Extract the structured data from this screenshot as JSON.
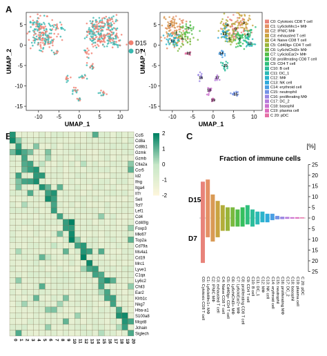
{
  "panels": {
    "a": {
      "letter": "A"
    },
    "b": {
      "letter": "B"
    },
    "c": {
      "letter": "C"
    }
  },
  "umap": {
    "x_label": "UMAP_1",
    "y_label": "UMAP_2",
    "x_ticks": [
      "-10",
      "-5",
      "0",
      "5",
      "10"
    ],
    "y_ticks": [
      "5",
      "0",
      "-5",
      "-10",
      "-15"
    ],
    "xlim": [
      -13,
      12
    ],
    "ylim": [
      -16,
      8
    ],
    "condition_legend": [
      {
        "label": "D15",
        "color": "#f08070"
      },
      {
        "label": "D7",
        "color": "#3ab8b0"
      }
    ],
    "cluster_legend": [
      {
        "label": "C0: Cytotoxic CD8 T cell",
        "color": "#e8837a"
      },
      {
        "label": "C1: Ly6cloMrc1+ MΦ",
        "color": "#e49065"
      },
      {
        "label": "C2: IFNIC MΦ",
        "color": "#d99a55"
      },
      {
        "label": "C3: exhausted T cell",
        "color": "#c9a440"
      },
      {
        "label": "C4: Naive CD8 T cell",
        "color": "#b3ad3a"
      },
      {
        "label": "C5: Cd40lg+ CD4 T cell",
        "color": "#99b43a"
      },
      {
        "label": "C6: Ly6chiChil3+ MΦ",
        "color": "#7ab93f"
      },
      {
        "label": "C7: Ly6cloEar2+ MΦ",
        "color": "#52bd48"
      },
      {
        "label": "C8: proliferating CD8 T cell",
        "color": "#35bf5e"
      },
      {
        "label": "C9: CD4 T cell",
        "color": "#2fbf7d"
      },
      {
        "label": "C10: B cell",
        "color": "#2cbd9b"
      },
      {
        "label": "C11: DC_1",
        "color": "#2ab9b5"
      },
      {
        "label": "C12: MΦ",
        "color": "#2ab3cb"
      },
      {
        "label": "C13: NK cell",
        "color": "#2eaadb"
      },
      {
        "label": "C14: erythroid cell",
        "color": "#4a9fe3"
      },
      {
        "label": "C15: neutrophil",
        "color": "#7392e6"
      },
      {
        "label": "C16: proliferating MΦ",
        "color": "#9a86e3"
      },
      {
        "label": "C17: DC_2",
        "color": "#b77bdb"
      },
      {
        "label": "C18: basophil",
        "color": "#cc72cf"
      },
      {
        "label": "C19: plasma cell",
        "color": "#dc6dbd"
      },
      {
        "label": "C 20: pDC",
        "color": "#e570a5"
      }
    ],
    "cluster_markers": [
      "0",
      "1",
      "2",
      "3",
      "4",
      "5",
      "6",
      "7",
      "8",
      "9",
      "10",
      "11",
      "12",
      "13",
      "14",
      "15",
      "16",
      "17",
      "18",
      "19",
      "20"
    ]
  },
  "heatmap": {
    "genes": [
      "Ccl5",
      "Cd8a",
      "Cd8b1",
      "Gzmk",
      "Gzmb",
      "Ctla2a",
      "Ccr5",
      "Id2",
      "Ifng",
      "Itga4",
      "Il7r",
      "Sell",
      "Tcf7",
      "Lef1",
      "Cd4",
      "Cd40lg",
      "Foxp3",
      "Mki67",
      "Top2a",
      "Cd79a",
      "Ms4a1",
      "Cd19",
      "Mrc1",
      "Lyve1",
      "C1qa",
      "Ly6c2",
      "Chil3",
      "Ear2",
      "Klrb1c",
      "Nkg7",
      "Hba-a1",
      "S100a8",
      "Mcpt8",
      "Jchain",
      "Siglech"
    ],
    "columns": [
      "0",
      "1",
      "2",
      "3",
      "4",
      "5",
      "6",
      "7",
      "8",
      "9",
      "10",
      "11",
      "12",
      "13",
      "14",
      "15",
      "16",
      "17",
      "18",
      "19",
      "20"
    ],
    "scale_ticks": [
      "2",
      "1",
      "0",
      "-1",
      "-2"
    ]
  },
  "fraction": {
    "title": "Fraction of immune cells",
    "unit": "[%]",
    "top_label": "D15",
    "bottom_label": "D7",
    "y_ticks_top": [
      "25",
      "20",
      "15",
      "10",
      "5",
      "0"
    ],
    "y_ticks_bottom": [
      "5",
      "10",
      "15",
      "20",
      "25"
    ]
  },
  "chart_data": {
    "type": "bar",
    "title": "Fraction of immune cells",
    "ylabel": "[%]",
    "ylim": [
      -25,
      25
    ],
    "categories": [
      "C0: Cytotoxic CD8 T cell",
      "C1: Ly6cloMrc1+ MΦ",
      "C2: IFNIC MΦ",
      "C3: exhausted T cell",
      "C4: Naive CD8 T cell",
      "C5: Cd40lg+ CD4 T cell",
      "C6: Ly6chiChil3+ MΦ",
      "C7: Ly6cloEar2+ MΦ",
      "C8: proliferating CD8 T cell",
      "C9: CD4 T cell",
      "C10: B cell",
      "C11: DC_1",
      "C12: MΦ",
      "C13: NK cell",
      "C14: erythroid cell",
      "C15: neutrophil",
      "C16: proliferating MΦ",
      "C17: DC_2",
      "C18: basophil",
      "C19: plasma cell",
      "C 20: pDC"
    ],
    "series": [
      {
        "name": "D15",
        "values": [
          17,
          18,
          11,
          8,
          6,
          5,
          5,
          4,
          5,
          6,
          4,
          3,
          3,
          2,
          2,
          1,
          0.6,
          0.5,
          0.4,
          0.4,
          0.3
        ]
      },
      {
        "name": "D7",
        "values": [
          21,
          9,
          11,
          9,
          6,
          6,
          4,
          4,
          4,
          3,
          4,
          3,
          2,
          2,
          1,
          0.6,
          0.5,
          0.4,
          0.3,
          0.3,
          0.2
        ]
      }
    ]
  }
}
